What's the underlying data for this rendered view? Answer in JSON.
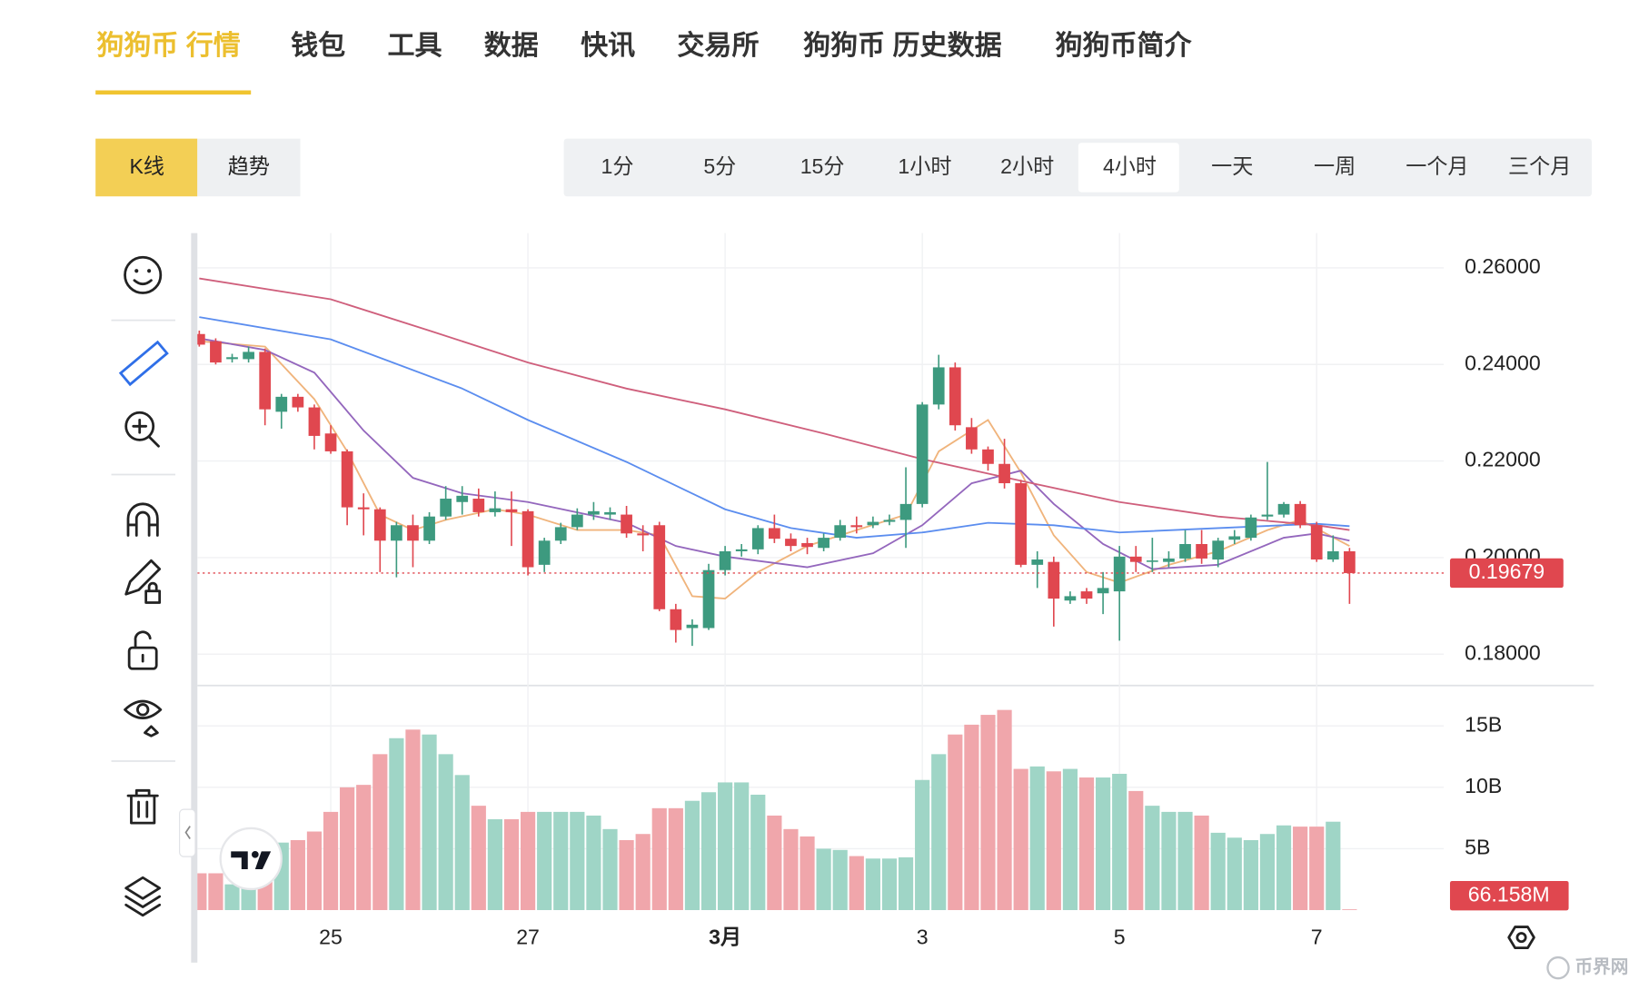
{
  "nav": [
    "狗狗币 行情",
    "钱包",
    "工具",
    "数据",
    "快讯",
    "交易所",
    "狗狗币 历史数据",
    "狗狗币简介"
  ],
  "chart_types": [
    "K线",
    "趋势"
  ],
  "intervals": [
    "1分",
    "5分",
    "15分",
    "1小时",
    "2小时",
    "4小时",
    "一天",
    "一周",
    "一个月",
    "三个月"
  ],
  "watermark": "币界网",
  "chart_data": {
    "type": "candlestick",
    "categories": [
      null,
      null,
      null,
      null,
      null,
      null,
      null,
      null,
      "25",
      null,
      null,
      null,
      null,
      null,
      null,
      null,
      null,
      null,
      null,
      null,
      "27",
      null,
      null,
      null,
      null,
      null,
      null,
      null,
      null,
      null,
      null,
      null,
      "3月",
      null,
      null,
      null,
      null,
      null,
      null,
      null,
      null,
      null,
      null,
      null,
      "3",
      null,
      null,
      null,
      null,
      null,
      null,
      null,
      null,
      null,
      null,
      null,
      "5",
      null,
      null,
      null,
      null,
      null,
      null,
      null,
      null,
      null,
      null,
      null,
      "7",
      null,
      null
    ],
    "ohlc": {
      "open": [
        0.2463,
        0.2448,
        0.2411,
        0.2411,
        0.2426,
        0.2302,
        0.2333,
        0.2311,
        0.2257,
        0.222,
        0.2104,
        0.21,
        0.2035,
        0.2067,
        0.2035,
        0.2085,
        0.2115,
        0.2122,
        0.2094,
        0.21,
        0.2096,
        0.1985,
        0.2035,
        0.2063,
        0.2089,
        0.2089,
        0.2089,
        0.205,
        0.2067,
        0.1893,
        0.1854,
        0.1854,
        0.1974,
        0.2013,
        0.2017,
        0.2061,
        0.2039,
        0.203,
        0.202,
        0.2041,
        0.2067,
        0.2067,
        0.2074,
        0.2078,
        0.2111,
        0.2317,
        0.2394,
        0.227,
        0.2224,
        0.2194,
        0.2154,
        0.1985,
        0.1991,
        0.1911,
        0.193,
        0.1926,
        0.193,
        0.2002,
        0.1991,
        0.1991,
        0.1998,
        0.2028,
        0.1996,
        0.2037,
        0.2041,
        0.2085,
        0.2089,
        0.2111,
        0.2067,
        0.1996,
        0.2013
      ],
      "high": [
        0.247,
        0.2454,
        0.2422,
        0.2437,
        0.2433,
        0.2339,
        0.2339,
        0.2317,
        0.2274,
        0.2224,
        0.2133,
        0.2104,
        0.2074,
        0.2089,
        0.2094,
        0.2148,
        0.2148,
        0.2143,
        0.2137,
        0.2137,
        0.21,
        0.2041,
        0.2072,
        0.2102,
        0.2115,
        0.2104,
        0.2107,
        0.2067,
        0.2074,
        0.1904,
        0.1872,
        0.1987,
        0.2024,
        0.2028,
        0.2067,
        0.2089,
        0.205,
        0.2041,
        0.205,
        0.2078,
        0.2085,
        0.2085,
        0.2089,
        0.2187,
        0.2322,
        0.242,
        0.2404,
        0.2289,
        0.223,
        0.2246,
        0.2161,
        0.2013,
        0.2002,
        0.193,
        0.1937,
        0.197,
        0.2024,
        0.2024,
        0.2041,
        0.2013,
        0.2057,
        0.2057,
        0.2041,
        0.2057,
        0.2089,
        0.2198,
        0.2115,
        0.2117,
        0.2074,
        0.2046,
        0.202
      ],
      "low": [
        0.2437,
        0.24,
        0.2404,
        0.2404,
        0.2274,
        0.2267,
        0.2302,
        0.2224,
        0.2215,
        0.2067,
        0.2046,
        0.197,
        0.1959,
        0.198,
        0.2028,
        0.2078,
        0.2089,
        0.2085,
        0.2085,
        0.2024,
        0.1963,
        0.197,
        0.2028,
        0.2057,
        0.2078,
        0.2078,
        0.2041,
        0.2013,
        0.1889,
        0.1824,
        0.1817,
        0.185,
        0.1963,
        0.2002,
        0.2007,
        0.203,
        0.2013,
        0.2007,
        0.2013,
        0.2035,
        0.205,
        0.2061,
        0.2067,
        0.202,
        0.2104,
        0.2307,
        0.2263,
        0.2215,
        0.218,
        0.2143,
        0.198,
        0.1937,
        0.1857,
        0.1904,
        0.1904,
        0.1883,
        0.1828,
        0.197,
        0.197,
        0.198,
        0.1991,
        0.1987,
        0.198,
        0.2028,
        0.2035,
        0.2078,
        0.2083,
        0.2061,
        0.1991,
        0.1991,
        0.1904
      ],
      "close": [
        0.2441,
        0.2404,
        0.2415,
        0.2426,
        0.2307,
        0.2333,
        0.2311,
        0.2252,
        0.222,
        0.2104,
        0.21,
        0.2035,
        0.2067,
        0.2035,
        0.2085,
        0.2122,
        0.2128,
        0.2094,
        0.2102,
        0.2094,
        0.198,
        0.2035,
        0.2063,
        0.2089,
        0.2096,
        0.2094,
        0.205,
        0.2046,
        0.1893,
        0.185,
        0.1861,
        0.1974,
        0.2013,
        0.2017,
        0.2061,
        0.2039,
        0.2024,
        0.2022,
        0.2041,
        0.2067,
        0.2063,
        0.2074,
        0.2078,
        0.2111,
        0.2317,
        0.2394,
        0.2274,
        0.2224,
        0.2194,
        0.2154,
        0.1985,
        0.1996,
        0.1915,
        0.192,
        0.1915,
        0.1937,
        0.2002,
        0.1991,
        0.1994,
        0.1998,
        0.2028,
        0.1998,
        0.2035,
        0.2044,
        0.2083,
        0.2089,
        0.2111,
        0.2067,
        0.1996,
        0.2013,
        0.19679
      ]
    },
    "up_color": "#3d9a7f",
    "down_color": "#e0474f",
    "ylim": [
      0.1735,
      0.2672
    ],
    "yticks": [
      {
        "value": 0.18,
        "label": "0.18000"
      },
      {
        "value": 0.2,
        "label": "0.20000"
      },
      {
        "value": 0.22,
        "label": "0.22000"
      },
      {
        "value": 0.24,
        "label": "0.24000"
      },
      {
        "value": 0.26,
        "label": "0.26000"
      }
    ],
    "grid": true,
    "moving_averages": [
      {
        "color": "#f0b47c",
        "x": [
          0,
          4,
          7,
          9,
          11,
          13,
          15,
          18,
          20,
          23,
          26,
          28,
          30,
          32,
          34,
          37,
          40,
          43,
          45,
          48,
          50,
          52,
          54,
          56,
          59,
          62,
          65,
          67,
          70
        ],
        "values": [
          0.2448,
          0.2437,
          0.2328,
          0.222,
          0.2089,
          0.2057,
          0.2078,
          0.21,
          0.2089,
          0.2057,
          0.2057,
          0.2046,
          0.192,
          0.1915,
          0.197,
          0.2024,
          0.2057,
          0.2089,
          0.222,
          0.2285,
          0.2176,
          0.2046,
          0.197,
          0.1948,
          0.1985,
          0.2013,
          0.2057,
          0.2078,
          0.2024
        ]
      },
      {
        "color": "#9467bd",
        "x": [
          0,
          4,
          7,
          10,
          13,
          16,
          20,
          26,
          29,
          32,
          37,
          41,
          44,
          47,
          50,
          52,
          55,
          58,
          62,
          66,
          68,
          70
        ],
        "values": [
          0.2454,
          0.243,
          0.2383,
          0.2263,
          0.2165,
          0.2133,
          0.2115,
          0.2072,
          0.2024,
          0.2002,
          0.198,
          0.2009,
          0.2067,
          0.2154,
          0.218,
          0.2111,
          0.2028,
          0.1976,
          0.1985,
          0.2041,
          0.205,
          0.2035
        ]
      },
      {
        "color": "#5b8def",
        "x": [
          0,
          8,
          16,
          20,
          26,
          32,
          36,
          40,
          44,
          48,
          52,
          56,
          62,
          68,
          70
        ],
        "values": [
          0.2498,
          0.2452,
          0.235,
          0.2285,
          0.2198,
          0.21,
          0.2061,
          0.2041,
          0.2052,
          0.2072,
          0.2067,
          0.2052,
          0.2061,
          0.207,
          0.2065
        ]
      },
      {
        "color": "#cf5f7c",
        "x": [
          0,
          8,
          14,
          20,
          26,
          32,
          38,
          44,
          50,
          56,
          62,
          68,
          70
        ],
        "values": [
          0.2578,
          0.2535,
          0.247,
          0.2404,
          0.235,
          0.2307,
          0.2257,
          0.2204,
          0.2159,
          0.2115,
          0.2085,
          0.2067,
          0.2057
        ]
      }
    ],
    "volume": {
      "values": [
        3.0,
        3.0,
        2.1,
        4.0,
        5.0,
        5.5,
        5.7,
        6.4,
        8.0,
        10.0,
        10.2,
        12.7,
        14.0,
        14.7,
        14.3,
        12.7,
        11.0,
        8.5,
        7.4,
        7.4,
        8.0,
        8.0,
        8.0,
        8.0,
        7.7,
        6.6,
        5.7,
        6.2,
        8.3,
        8.3,
        8.9,
        9.6,
        10.4,
        10.4,
        9.4,
        7.7,
        6.6,
        6.0,
        5.0,
        4.9,
        4.4,
        4.2,
        4.2,
        4.3,
        10.6,
        12.7,
        14.3,
        15.1,
        15.9,
        16.3,
        11.5,
        11.7,
        11.3,
        11.5,
        10.8,
        10.8,
        11.1,
        9.7,
        8.5,
        8.0,
        8.0,
        7.7,
        6.3,
        5.9,
        5.7,
        6.2,
        6.9,
        6.8,
        6.8,
        7.2,
        0.066158
      ],
      "value_labels": [
        null,
        null,
        null,
        null,
        null,
        null,
        null,
        null,
        null,
        null,
        null,
        null,
        null,
        null,
        null,
        null,
        null,
        null,
        null,
        null,
        null,
        null,
        null,
        null,
        null,
        null,
        null,
        null,
        null,
        null,
        null,
        null,
        null,
        null,
        null,
        null,
        null,
        null,
        null,
        null,
        null,
        null,
        null,
        null,
        null,
        null,
        null,
        null,
        null,
        null,
        null,
        null,
        null,
        null,
        null,
        null,
        null,
        null,
        null,
        null,
        null,
        null,
        null,
        null,
        null,
        null,
        null,
        null,
        null,
        null,
        "66.158M"
      ],
      "up_color": "#9fd5c6",
      "down_color": "#f0a6ab",
      "ylim": [
        0,
        18.29
      ],
      "yticks": [
        {
          "value": 5,
          "label": "5B"
        },
        {
          "value": 10,
          "label": "10B"
        },
        {
          "value": 15,
          "label": "15B"
        }
      ]
    }
  }
}
